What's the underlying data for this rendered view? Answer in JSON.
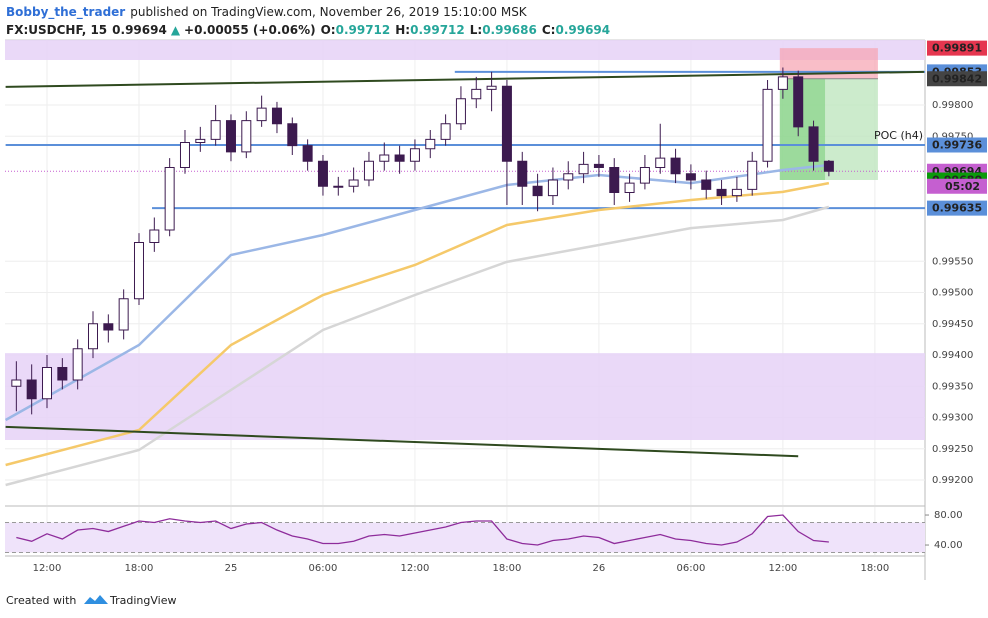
{
  "header": {
    "author": "Bobby_the_trader",
    "published": "published on TradingView.com, November 26, 2019 15:10:00 MSK",
    "symbol": "FX:USDCHF, 15",
    "last": "0.99694",
    "arrow": "▲",
    "change": "+0.00055 (+0.06%)",
    "ohlc": [
      [
        "O:",
        "0.99712"
      ],
      [
        "H:",
        "0.99712"
      ],
      [
        "L:",
        "0.99686"
      ],
      [
        "C:",
        "0.99694"
      ]
    ]
  },
  "footer": {
    "text": "Created with",
    "brand": "TradingView"
  },
  "chart_data": {
    "type": "candlestick",
    "xlim": [
      9.26,
      69.27
    ],
    "ylim": [
      0.9916,
      0.99904
    ],
    "xticks": [
      {
        "value": 12,
        "label": "12:00"
      },
      {
        "value": 18,
        "label": "18:00"
      },
      {
        "value": 24,
        "label": "25"
      },
      {
        "value": 30,
        "label": "06:00"
      },
      {
        "value": 36,
        "label": "12:00"
      },
      {
        "value": 42,
        "label": "18:00"
      },
      {
        "value": 48,
        "label": "26"
      },
      {
        "value": 54,
        "label": "06:00"
      },
      {
        "value": 60,
        "label": "12:00"
      },
      {
        "value": 66,
        "label": "18:00"
      }
    ],
    "yticks": [
      {
        "value": 0.998,
        "label": "0.99800"
      },
      {
        "value": 0.9975,
        "label": "0.99750"
      },
      {
        "value": 0.9955,
        "label": "0.99550"
      },
      {
        "value": 0.995,
        "label": "0.99500"
      },
      {
        "value": 0.9945,
        "label": "0.99450"
      },
      {
        "value": 0.994,
        "label": "0.99400"
      },
      {
        "value": 0.9935,
        "label": "0.99350"
      },
      {
        "value": 0.993,
        "label": "0.99300"
      },
      {
        "value": 0.9925,
        "label": "0.99250"
      },
      {
        "value": 0.992,
        "label": "0.99200"
      }
    ],
    "grid": true,
    "up_color": "#ffffff",
    "down_color": "#3c1a4f",
    "edge_color": "#3c1a4f",
    "x": [
      10,
      11,
      12,
      13,
      14,
      15,
      16,
      17,
      18,
      19,
      20,
      21,
      22,
      23,
      24,
      25,
      26,
      27,
      28,
      29,
      30,
      31,
      32,
      33,
      34,
      35,
      36,
      37,
      38,
      39,
      40,
      41,
      42,
      43,
      44,
      45,
      46,
      47,
      48,
      49,
      50,
      51,
      52,
      53,
      54,
      55,
      56,
      57,
      58,
      59,
      60,
      61,
      62,
      63
    ],
    "open": [
      0.9935,
      0.9936,
      0.9933,
      0.9938,
      0.9936,
      0.9941,
      0.9945,
      0.9944,
      0.9949,
      0.9958,
      0.996,
      0.997,
      0.9974,
      0.99745,
      0.99775,
      0.99725,
      0.99775,
      0.99795,
      0.9977,
      0.99735,
      0.9971,
      0.9967,
      0.9967,
      0.9968,
      0.9971,
      0.9972,
      0.9971,
      0.9973,
      0.99745,
      0.9977,
      0.9981,
      0.99825,
      0.9983,
      0.9971,
      0.9967,
      0.99655,
      0.9968,
      0.9969,
      0.99705,
      0.997,
      0.9966,
      0.99675,
      0.997,
      0.99715,
      0.9969,
      0.9968,
      0.99665,
      0.99655,
      0.99665,
      0.9971,
      0.99825,
      0.99845,
      0.99765,
      0.9971
    ],
    "high": [
      0.9939,
      0.99385,
      0.994,
      0.99395,
      0.99425,
      0.9947,
      0.99465,
      0.99505,
      0.99595,
      0.9962,
      0.99715,
      0.9976,
      0.99765,
      0.998,
      0.99785,
      0.9979,
      0.99815,
      0.99805,
      0.9978,
      0.99745,
      0.9972,
      0.99685,
      0.997,
      0.99725,
      0.9974,
      0.99735,
      0.99745,
      0.9976,
      0.99785,
      0.9983,
      0.99845,
      0.99853,
      0.9984,
      0.99725,
      0.9969,
      0.997,
      0.9971,
      0.99725,
      0.9972,
      0.99715,
      0.9969,
      0.9972,
      0.9977,
      0.9973,
      0.99705,
      0.99695,
      0.9968,
      0.99685,
      0.99725,
      0.9984,
      0.9986,
      0.99855,
      0.99775,
      0.99712
    ],
    "low": [
      0.9931,
      0.99305,
      0.99315,
      0.99345,
      0.99345,
      0.99395,
      0.9942,
      0.99425,
      0.9948,
      0.99565,
      0.9959,
      0.9969,
      0.99725,
      0.99735,
      0.9971,
      0.99715,
      0.99765,
      0.99755,
      0.9972,
      0.99695,
      0.99655,
      0.99655,
      0.9966,
      0.9967,
      0.99695,
      0.9969,
      0.99695,
      0.99715,
      0.99735,
      0.9976,
      0.99795,
      0.9979,
      0.9964,
      0.9964,
      0.9963,
      0.9964,
      0.99665,
      0.99675,
      0.99685,
      0.9964,
      0.99645,
      0.99665,
      0.9969,
      0.99675,
      0.99665,
      0.9965,
      0.9964,
      0.99645,
      0.99655,
      0.997,
      0.9981,
      0.9975,
      0.99695,
      0.99686
    ],
    "close": [
      0.9936,
      0.9933,
      0.9938,
      0.9936,
      0.9941,
      0.9945,
      0.9944,
      0.9949,
      0.9958,
      0.996,
      0.997,
      0.9974,
      0.99745,
      0.99775,
      0.99725,
      0.99775,
      0.99795,
      0.9977,
      0.99735,
      0.9971,
      0.9967,
      0.9967,
      0.9968,
      0.9971,
      0.9972,
      0.9971,
      0.9973,
      0.99745,
      0.9977,
      0.9981,
      0.99825,
      0.9983,
      0.9971,
      0.9967,
      0.99655,
      0.9968,
      0.9969,
      0.99705,
      0.997,
      0.9966,
      0.99675,
      0.997,
      0.99715,
      0.9969,
      0.9968,
      0.99665,
      0.99655,
      0.99665,
      0.9971,
      0.99825,
      0.99845,
      0.99765,
      0.9971,
      0.99694
    ],
    "overlays": [
      {
        "color": "#9bb7e6",
        "x": [
          9.3,
          18,
          24,
          30,
          36,
          42,
          48,
          54,
          60,
          63
        ],
        "values": [
          0.99296,
          0.99416,
          0.9956,
          0.99592,
          0.99632,
          0.99672,
          0.99688,
          0.99675,
          0.99696,
          0.99704
        ]
      },
      {
        "color": "#f5c96a",
        "x": [
          9.3,
          18,
          24,
          30,
          36,
          42,
          48,
          54,
          60,
          63
        ],
        "values": [
          0.99224,
          0.9928,
          0.99416,
          0.99496,
          0.99544,
          0.99608,
          0.99632,
          0.99648,
          0.99661,
          0.99675
        ]
      },
      {
        "color": "#d6d6d6",
        "x": [
          9.3,
          18,
          24,
          30,
          36,
          42,
          48,
          54,
          60,
          63
        ],
        "values": [
          0.99192,
          0.99248,
          0.99344,
          0.9944,
          0.99496,
          0.99549,
          0.99576,
          0.99603,
          0.99616,
          0.99637
        ]
      }
    ],
    "zones": [
      {
        "color": "#e6d2f7",
        "y": [
          0.99872,
          0.99904
        ]
      },
      {
        "color": "#e6d2f7",
        "y": [
          0.99264,
          0.99403
        ]
      }
    ],
    "trendlines": [
      {
        "color": "#2f4a1f",
        "x": [
          9.3,
          69.2
        ],
        "y": [
          0.99829,
          0.99853
        ]
      },
      {
        "color": "#2f4a1f",
        "x": [
          9.3,
          61.0
        ],
        "y": [
          0.99285,
          0.99238
        ]
      }
    ],
    "levels": [
      {
        "color": "#5b8fd9",
        "value": 0.99853,
        "x0": 38.6
      },
      {
        "color": "#5b8fd9",
        "value": 0.99736,
        "x0": 9.3
      },
      {
        "color": "#5b8fd9",
        "value": 0.99635,
        "x0": 18.85
      }
    ],
    "poc": {
      "text": "POC (h4)",
      "value": 0.99736
    },
    "position": {
      "x": [
        59.8,
        66.2
      ],
      "filled_to": 62.75,
      "entry": 0.99842,
      "stop": 0.99891,
      "target": 0.9968
    },
    "current": {
      "value": 0.99694,
      "color": "#c55fd0"
    },
    "price_labels": [
      {
        "value": 0.99891,
        "label": "0.99891",
        "color": "#e5364f"
      },
      {
        "value": 0.99853,
        "label": "0.99853",
        "color": "#5b8fd9"
      },
      {
        "value": 0.99842,
        "label": "0.99842",
        "color": "#444444"
      },
      {
        "value": 0.99736,
        "label": "0.99736",
        "color": "#5b8fd9"
      },
      {
        "value": 0.99694,
        "label": "0.99694",
        "color": "#c55fd0"
      },
      {
        "value": 0.9968,
        "label": "0.99680",
        "color": "#0a9b0a"
      },
      {
        "value": 0.99635,
        "label": "0.99635",
        "color": "#5b8fd9"
      }
    ],
    "countdown": "05:02",
    "rsi": {
      "color": "#8e2c9b",
      "ylim": [
        26.7,
        90.7
      ],
      "yticks": [
        {
          "value": 80,
          "label": "80.00"
        },
        {
          "value": 40,
          "label": "40.00"
        }
      ],
      "band": [
        30,
        70
      ],
      "values": [
        50,
        45,
        55,
        48,
        60,
        62,
        58,
        65,
        72,
        70,
        75,
        72,
        70,
        72,
        62,
        68,
        70,
        60,
        52,
        48,
        42,
        42,
        45,
        52,
        54,
        52,
        56,
        60,
        64,
        70,
        72,
        72,
        48,
        42,
        40,
        46,
        48,
        52,
        50,
        42,
        46,
        50,
        54,
        48,
        46,
        42,
        40,
        44,
        55,
        78,
        80,
        58,
        46,
        44
      ]
    }
  }
}
